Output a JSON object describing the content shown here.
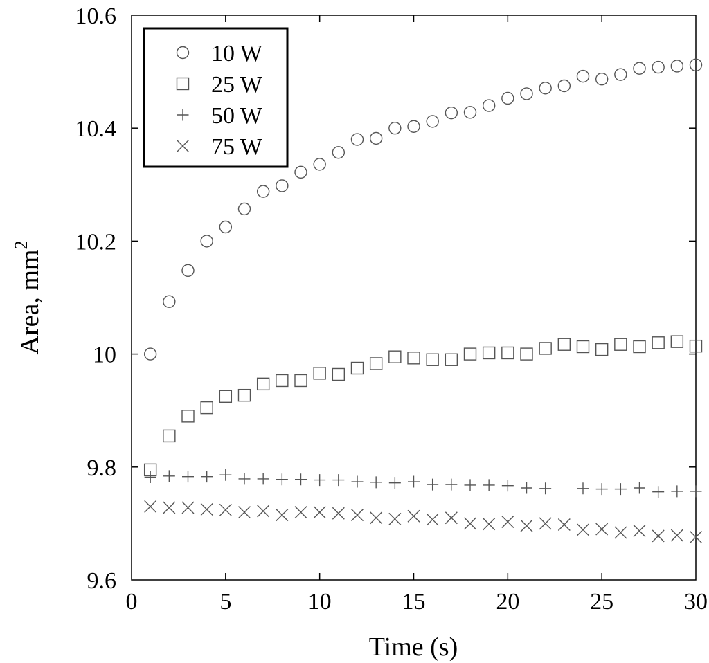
{
  "chart_data": {
    "type": "scatter",
    "title": "",
    "xlabel": "Time (s)",
    "ylabel": "Area, mm",
    "ylabel_superscript": "2",
    "xlim": [
      0,
      30
    ],
    "ylim": [
      9.6,
      10.6
    ],
    "x_ticks": [
      "0",
      "5",
      "10",
      "15",
      "20",
      "25",
      "30"
    ],
    "y_ticks": [
      "9.6",
      "9.8",
      "10",
      "10.2",
      "10.4",
      "10.6"
    ],
    "grid": false,
    "legend_position": "top-left",
    "series": [
      {
        "name": "10 W",
        "marker": "circle",
        "x": [
          1,
          2,
          3,
          4,
          5,
          6,
          7,
          8,
          9,
          10,
          11,
          12,
          13,
          14,
          15,
          16,
          17,
          18,
          19,
          20,
          21,
          22,
          23,
          24,
          25,
          26,
          27,
          28,
          29,
          30
        ],
        "values": [
          10.0,
          10.093,
          10.148,
          10.2,
          10.225,
          10.257,
          10.288,
          10.298,
          10.322,
          10.336,
          10.357,
          10.38,
          10.382,
          10.4,
          10.403,
          10.412,
          10.427,
          10.428,
          10.44,
          10.453,
          10.461,
          10.471,
          10.475,
          10.492,
          10.487,
          10.495,
          10.506,
          10.508,
          10.51,
          10.512
        ]
      },
      {
        "name": "25 W",
        "marker": "square",
        "x": [
          1,
          2,
          3,
          4,
          5,
          6,
          7,
          8,
          9,
          10,
          11,
          12,
          13,
          14,
          15,
          16,
          17,
          18,
          19,
          20,
          21,
          22,
          23,
          24,
          25,
          26,
          27,
          28,
          29,
          30
        ],
        "values": [
          9.795,
          9.855,
          9.89,
          9.905,
          9.925,
          9.927,
          9.947,
          9.953,
          9.953,
          9.966,
          9.964,
          9.975,
          9.983,
          9.995,
          9.993,
          9.99,
          9.99,
          10.0,
          10.002,
          10.002,
          10.0,
          10.01,
          10.017,
          10.013,
          10.008,
          10.017,
          10.013,
          10.02,
          10.022,
          10.014
        ]
      },
      {
        "name": "50 W",
        "marker": "plus",
        "x": [
          1,
          2,
          3,
          4,
          5,
          6,
          7,
          8,
          9,
          10,
          11,
          12,
          13,
          14,
          15,
          16,
          17,
          18,
          19,
          20,
          21,
          22,
          24,
          25,
          26,
          27,
          28,
          29,
          30
        ],
        "values": [
          9.782,
          9.784,
          9.783,
          9.783,
          9.786,
          9.779,
          9.779,
          9.778,
          9.778,
          9.777,
          9.777,
          9.774,
          9.773,
          9.772,
          9.774,
          9.769,
          9.769,
          9.768,
          9.768,
          9.767,
          9.763,
          9.762,
          9.762,
          9.761,
          9.761,
          9.763,
          9.756,
          9.757,
          9.757
        ]
      },
      {
        "name": "75 W",
        "marker": "x",
        "x": [
          1,
          2,
          3,
          4,
          5,
          6,
          7,
          8,
          9,
          10,
          11,
          12,
          13,
          14,
          15,
          16,
          17,
          18,
          19,
          20,
          21,
          22,
          23,
          24,
          25,
          26,
          27,
          28,
          29,
          30
        ],
        "values": [
          9.73,
          9.728,
          9.728,
          9.725,
          9.724,
          9.72,
          9.722,
          9.715,
          9.72,
          9.72,
          9.718,
          9.715,
          9.71,
          9.708,
          9.713,
          9.707,
          9.71,
          9.7,
          9.699,
          9.703,
          9.696,
          9.7,
          9.698,
          9.689,
          9.69,
          9.684,
          9.687,
          9.678,
          9.679,
          9.676
        ]
      }
    ]
  }
}
